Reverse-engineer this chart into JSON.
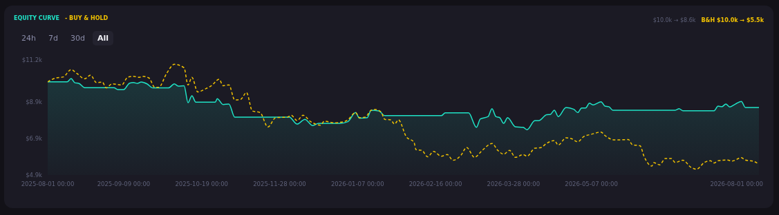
{
  "chart_data": {
    "type": "area",
    "legend": "top left",
    "marker": "none",
    "grid": false,
    "annotations": [
      "24h",
      "7d",
      "30d",
      "All",
      "$10.0k → $8.6k",
      "B&H $10.0k → $5.5k"
    ],
    "xlim": [
      "2025-08-01",
      "2026-08-01"
    ],
    "xticks": [
      {
        "value": "2025-08-01",
        "label": "2025-08-01 00:00"
      },
      {
        "value": "2025-09-09",
        "label": "2025-09-09 00:00"
      },
      {
        "value": "2025-10-19",
        "label": "2025-10-19 00:00"
      },
      {
        "value": "2025-11-28",
        "label": "2025-11-28 00:00"
      },
      {
        "value": "2026-01-07",
        "label": "2026-01-07 00:00"
      },
      {
        "value": "2026-02-16",
        "label": "2026-02-16 00:00"
      },
      {
        "value": "2026-03-28",
        "label": "2026-03-28 00:00"
      },
      {
        "value": "2026-05-07",
        "label": "2026-05-07 00:00"
      },
      {
        "value": "2026-08-01",
        "label": "2026-08-01 00:00"
      }
    ],
    "ylim": [
      4900,
      11200
    ],
    "yticks": [
      {
        "value": 4900,
        "label": "$4.9k"
      },
      {
        "value": 6900,
        "label": "$6.9k"
      },
      {
        "value": 8900,
        "label": "$8.9k"
      },
      {
        "value": 11200,
        "label": "$11.2k"
      }
    ],
    "series": [
      {
        "name": "EQUITY CURVE",
        "color": "#1fe3c6",
        "line_style": "solid",
        "x": [
          "2025-08-01",
          "2025-08-11",
          "2025-08-13",
          "2025-08-15",
          "2025-08-17",
          "2025-08-20",
          "2025-09-04",
          "2025-09-06",
          "2025-09-09",
          "2025-09-12",
          "2025-09-14",
          "2025-09-16",
          "2025-09-18",
          "2025-09-21",
          "2025-09-24",
          "2025-10-02",
          "2025-10-05",
          "2025-10-07",
          "2025-10-10",
          "2025-10-12",
          "2025-10-14",
          "2025-10-16",
          "2025-10-26",
          "2025-10-27",
          "2025-10-30",
          "2025-11-02",
          "2025-11-05",
          "2025-12-03",
          "2025-12-07",
          "2025-12-11",
          "2025-12-15",
          "2025-12-18",
          "2025-12-29",
          "2026-01-02",
          "2026-01-06",
          "2026-01-08",
          "2026-01-12",
          "2026-01-14",
          "2026-01-18",
          "2026-01-21",
          "2026-02-19",
          "2026-02-21",
          "2026-03-05",
          "2026-03-09",
          "2026-03-11",
          "2026-03-15",
          "2026-03-17",
          "2026-03-19",
          "2026-03-21",
          "2026-03-23",
          "2026-03-25",
          "2026-03-29",
          "2026-04-02",
          "2026-04-04",
          "2026-04-08",
          "2026-04-10",
          "2026-04-14",
          "2026-04-16",
          "2026-04-18",
          "2026-04-20",
          "2026-04-24",
          "2026-04-28",
          "2026-04-30",
          "2026-05-02",
          "2026-05-04",
          "2026-05-06",
          "2026-05-08",
          "2026-05-12",
          "2026-05-14",
          "2026-05-16",
          "2026-05-18",
          "2026-06-19",
          "2026-06-21",
          "2026-06-23",
          "2026-07-09",
          "2026-07-11",
          "2026-07-13",
          "2026-07-15",
          "2026-07-17",
          "2026-07-20",
          "2026-07-23",
          "2026-07-25",
          "2026-08-01"
        ],
        "values": [
          10000,
          10000,
          10180,
          9950,
          9920,
          9680,
          9680,
          9580,
          9580,
          9930,
          9960,
          9920,
          9990,
          9890,
          9670,
          9670,
          9890,
          9770,
          9790,
          8860,
          9240,
          8890,
          8890,
          9080,
          8760,
          8790,
          8070,
          8070,
          7690,
          7950,
          7610,
          7730,
          7730,
          7820,
          8320,
          8010,
          8040,
          8450,
          8410,
          8150,
          8150,
          8300,
          8300,
          7510,
          7970,
          8100,
          8530,
          8100,
          8040,
          7730,
          8040,
          7540,
          7510,
          7380,
          7880,
          7880,
          8200,
          8220,
          8450,
          8100,
          8600,
          8500,
          8320,
          8570,
          8570,
          8830,
          8740,
          8910,
          8670,
          8640,
          8450,
          8450,
          8530,
          8420,
          8420,
          8670,
          8640,
          8790,
          8630,
          8790,
          8930,
          8600,
          8600
        ]
      },
      {
        "name": "- BUY & HOLD",
        "type": "line",
        "color": "#f2c200",
        "line_style": "dashed",
        "x": [
          "2025-08-01",
          "2025-08-05",
          "2025-08-09",
          "2025-08-13",
          "2025-08-16",
          "2025-08-20",
          "2025-08-23",
          "2025-08-26",
          "2025-08-29",
          "2025-08-31",
          "2025-09-03",
          "2025-09-08",
          "2025-09-11",
          "2025-09-14",
          "2025-09-17",
          "2025-09-19",
          "2025-09-22",
          "2025-09-25",
          "2025-09-27",
          "2025-10-01",
          "2025-10-05",
          "2025-10-10",
          "2025-10-12",
          "2025-10-14",
          "2025-10-17",
          "2025-10-21",
          "2025-10-24",
          "2025-10-28",
          "2025-10-30",
          "2025-11-02",
          "2025-11-05",
          "2025-11-08",
          "2025-11-11",
          "2025-11-14",
          "2025-11-18",
          "2025-11-22",
          "2025-11-26",
          "2025-12-02",
          "2025-12-04",
          "2025-12-07",
          "2025-12-10",
          "2025-12-14",
          "2025-12-19",
          "2025-12-21",
          "2025-12-26",
          "2025-12-31",
          "2026-01-02",
          "2026-01-06",
          "2026-01-08",
          "2026-01-11",
          "2026-01-14",
          "2026-01-16",
          "2026-01-19",
          "2026-01-21",
          "2026-01-24",
          "2026-01-26",
          "2026-01-28",
          "2026-02-01",
          "2026-02-05",
          "2026-02-06",
          "2026-02-09",
          "2026-02-12",
          "2026-02-15",
          "2026-02-19",
          "2026-02-22",
          "2026-02-25",
          "2026-03-01",
          "2026-03-04",
          "2026-03-08",
          "2026-03-12",
          "2026-03-17",
          "2026-03-20",
          "2026-03-23",
          "2026-03-26",
          "2026-03-29",
          "2026-04-02",
          "2026-04-04",
          "2026-04-08",
          "2026-04-11",
          "2026-04-14",
          "2026-04-18",
          "2026-04-20",
          "2026-04-24",
          "2026-04-27",
          "2026-04-30",
          "2026-05-03",
          "2026-05-07",
          "2026-05-12",
          "2026-05-14",
          "2026-05-19",
          "2026-05-26",
          "2026-05-28",
          "2026-06-01",
          "2026-06-03",
          "2026-06-07",
          "2026-06-08",
          "2026-06-11",
          "2026-06-14",
          "2026-06-17",
          "2026-06-19",
          "2026-06-23",
          "2026-06-27",
          "2026-06-30",
          "2026-07-04",
          "2026-07-07",
          "2026-07-09",
          "2026-07-11",
          "2026-07-16",
          "2026-07-18",
          "2026-07-23",
          "2026-07-25",
          "2026-07-29",
          "2026-08-01"
        ],
        "values": [
          10000,
          10210,
          10270,
          10670,
          10460,
          10170,
          10370,
          9960,
          9990,
          9670,
          9890,
          9830,
          10250,
          10300,
          10250,
          10300,
          10210,
          9700,
          9700,
          10460,
          10960,
          10770,
          9830,
          10250,
          9450,
          9620,
          9790,
          10140,
          9790,
          9830,
          9010,
          9040,
          9420,
          8410,
          8320,
          7530,
          8040,
          8070,
          8170,
          7880,
          8170,
          7820,
          7630,
          7850,
          7760,
          7820,
          7920,
          8320,
          8040,
          8070,
          8450,
          8490,
          8360,
          7950,
          7920,
          7690,
          7920,
          7000,
          6690,
          6290,
          6250,
          5900,
          6190,
          5930,
          6020,
          5710,
          5970,
          6410,
          5870,
          6250,
          6630,
          6250,
          6040,
          6250,
          5870,
          6020,
          5930,
          6370,
          6400,
          6630,
          6790,
          6540,
          6940,
          6880,
          6720,
          7000,
          7130,
          7250,
          7060,
          6820,
          6840,
          6560,
          6500,
          5930,
          5390,
          5580,
          5460,
          5810,
          5810,
          5590,
          5710,
          5330,
          5220,
          5590,
          5680,
          5560,
          5680,
          5720,
          5660,
          5850,
          5720,
          5660,
          5500
        ]
      }
    ]
  }
}
